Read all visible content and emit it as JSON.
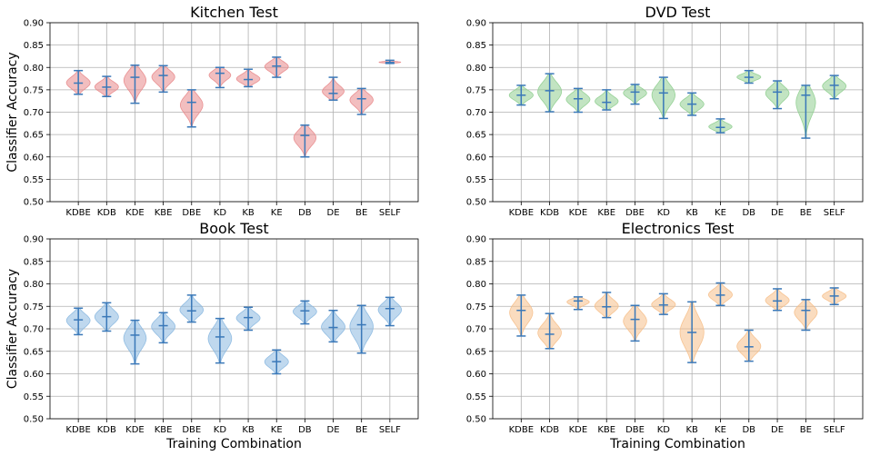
{
  "chart_data": [
    {
      "type": "violin",
      "title": "Kitchen Test",
      "xlabel": "",
      "ylabel": "Classifier Accuracy",
      "ylim": [
        0.5,
        0.9
      ],
      "yticks": [
        "0.50",
        "0.55",
        "0.60",
        "0.65",
        "0.70",
        "0.75",
        "0.80",
        "0.85",
        "0.90"
      ],
      "categories": [
        "KDBE",
        "KDB",
        "KDE",
        "KBE",
        "DBE",
        "KD",
        "KB",
        "KE",
        "DB",
        "DE",
        "BE",
        "SELF"
      ],
      "grid": true,
      "fill_color": "#e8888a",
      "line_color": "#3a78b8",
      "violins": [
        {
          "min": 0.74,
          "median": 0.765,
          "max": 0.793
        },
        {
          "min": 0.735,
          "median": 0.756,
          "max": 0.78
        },
        {
          "min": 0.72,
          "median": 0.778,
          "max": 0.805
        },
        {
          "min": 0.745,
          "median": 0.782,
          "max": 0.804
        },
        {
          "min": 0.667,
          "median": 0.722,
          "max": 0.75
        },
        {
          "min": 0.755,
          "median": 0.787,
          "max": 0.8
        },
        {
          "min": 0.757,
          "median": 0.773,
          "max": 0.796
        },
        {
          "min": 0.778,
          "median": 0.803,
          "max": 0.823
        },
        {
          "min": 0.6,
          "median": 0.648,
          "max": 0.671
        },
        {
          "min": 0.727,
          "median": 0.742,
          "max": 0.778
        },
        {
          "min": 0.695,
          "median": 0.73,
          "max": 0.753
        },
        {
          "min": 0.809,
          "median": 0.811,
          "max": 0.816
        }
      ]
    },
    {
      "type": "violin",
      "title": "DVD Test",
      "xlabel": "",
      "ylabel": "",
      "ylim": [
        0.5,
        0.9
      ],
      "yticks": [
        "0.50",
        "0.55",
        "0.60",
        "0.65",
        "0.70",
        "0.75",
        "0.80",
        "0.85",
        "0.90"
      ],
      "categories": [
        "KDBE",
        "KDB",
        "KDE",
        "KBE",
        "DBE",
        "KD",
        "KB",
        "KE",
        "DB",
        "DE",
        "BE",
        "SELF"
      ],
      "grid": true,
      "fill_color": "#8fce8f",
      "line_color": "#3a78b8",
      "violins": [
        {
          "min": 0.716,
          "median": 0.738,
          "max": 0.76
        },
        {
          "min": 0.701,
          "median": 0.748,
          "max": 0.786
        },
        {
          "min": 0.7,
          "median": 0.73,
          "max": 0.753
        },
        {
          "min": 0.705,
          "median": 0.722,
          "max": 0.75
        },
        {
          "min": 0.718,
          "median": 0.745,
          "max": 0.762
        },
        {
          "min": 0.686,
          "median": 0.743,
          "max": 0.778
        },
        {
          "min": 0.693,
          "median": 0.718,
          "max": 0.743
        },
        {
          "min": 0.654,
          "median": 0.666,
          "max": 0.685
        },
        {
          "min": 0.765,
          "median": 0.778,
          "max": 0.793
        },
        {
          "min": 0.708,
          "median": 0.745,
          "max": 0.77
        },
        {
          "min": 0.642,
          "median": 0.738,
          "max": 0.76
        },
        {
          "min": 0.73,
          "median": 0.76,
          "max": 0.782
        }
      ]
    },
    {
      "type": "violin",
      "title": "Book Test",
      "xlabel": "Training Combination",
      "ylabel": "Classifier Accuracy",
      "ylim": [
        0.5,
        0.9
      ],
      "yticks": [
        "0.50",
        "0.55",
        "0.60",
        "0.65",
        "0.70",
        "0.75",
        "0.80",
        "0.85",
        "0.90"
      ],
      "categories": [
        "KDBE",
        "KDB",
        "KDE",
        "KBE",
        "DBE",
        "KD",
        "KB",
        "KE",
        "DB",
        "DE",
        "BE",
        "SELF"
      ],
      "grid": true,
      "fill_color": "#8ab8e0",
      "line_color": "#3a78b8",
      "violins": [
        {
          "min": 0.687,
          "median": 0.72,
          "max": 0.746
        },
        {
          "min": 0.695,
          "median": 0.727,
          "max": 0.758
        },
        {
          "min": 0.622,
          "median": 0.686,
          "max": 0.719
        },
        {
          "min": 0.669,
          "median": 0.707,
          "max": 0.736
        },
        {
          "min": 0.715,
          "median": 0.74,
          "max": 0.775
        },
        {
          "min": 0.624,
          "median": 0.682,
          "max": 0.723
        },
        {
          "min": 0.697,
          "median": 0.725,
          "max": 0.748
        },
        {
          "min": 0.6,
          "median": 0.627,
          "max": 0.653
        },
        {
          "min": 0.711,
          "median": 0.74,
          "max": 0.762
        },
        {
          "min": 0.671,
          "median": 0.703,
          "max": 0.741
        },
        {
          "min": 0.646,
          "median": 0.709,
          "max": 0.752
        },
        {
          "min": 0.707,
          "median": 0.745,
          "max": 0.77
        }
      ]
    },
    {
      "type": "violin",
      "title": "Electronics Test",
      "xlabel": "Training Combination",
      "ylabel": "",
      "ylim": [
        0.5,
        0.9
      ],
      "yticks": [
        "0.50",
        "0.55",
        "0.60",
        "0.65",
        "0.70",
        "0.75",
        "0.80",
        "0.85",
        "0.90"
      ],
      "categories": [
        "KDBE",
        "KDB",
        "KDE",
        "KBE",
        "DBE",
        "KD",
        "KB",
        "KE",
        "DB",
        "DE",
        "BE",
        "SELF"
      ],
      "grid": true,
      "fill_color": "#f6bf8a",
      "line_color": "#3a78b8",
      "violins": [
        {
          "min": 0.684,
          "median": 0.741,
          "max": 0.775
        },
        {
          "min": 0.656,
          "median": 0.688,
          "max": 0.734
        },
        {
          "min": 0.743,
          "median": 0.762,
          "max": 0.771
        },
        {
          "min": 0.725,
          "median": 0.749,
          "max": 0.781
        },
        {
          "min": 0.673,
          "median": 0.721,
          "max": 0.752
        },
        {
          "min": 0.732,
          "median": 0.753,
          "max": 0.778
        },
        {
          "min": 0.625,
          "median": 0.692,
          "max": 0.76
        },
        {
          "min": 0.752,
          "median": 0.775,
          "max": 0.802
        },
        {
          "min": 0.628,
          "median": 0.66,
          "max": 0.697
        },
        {
          "min": 0.741,
          "median": 0.762,
          "max": 0.789
        },
        {
          "min": 0.697,
          "median": 0.741,
          "max": 0.765
        },
        {
          "min": 0.754,
          "median": 0.773,
          "max": 0.791
        }
      ]
    }
  ]
}
